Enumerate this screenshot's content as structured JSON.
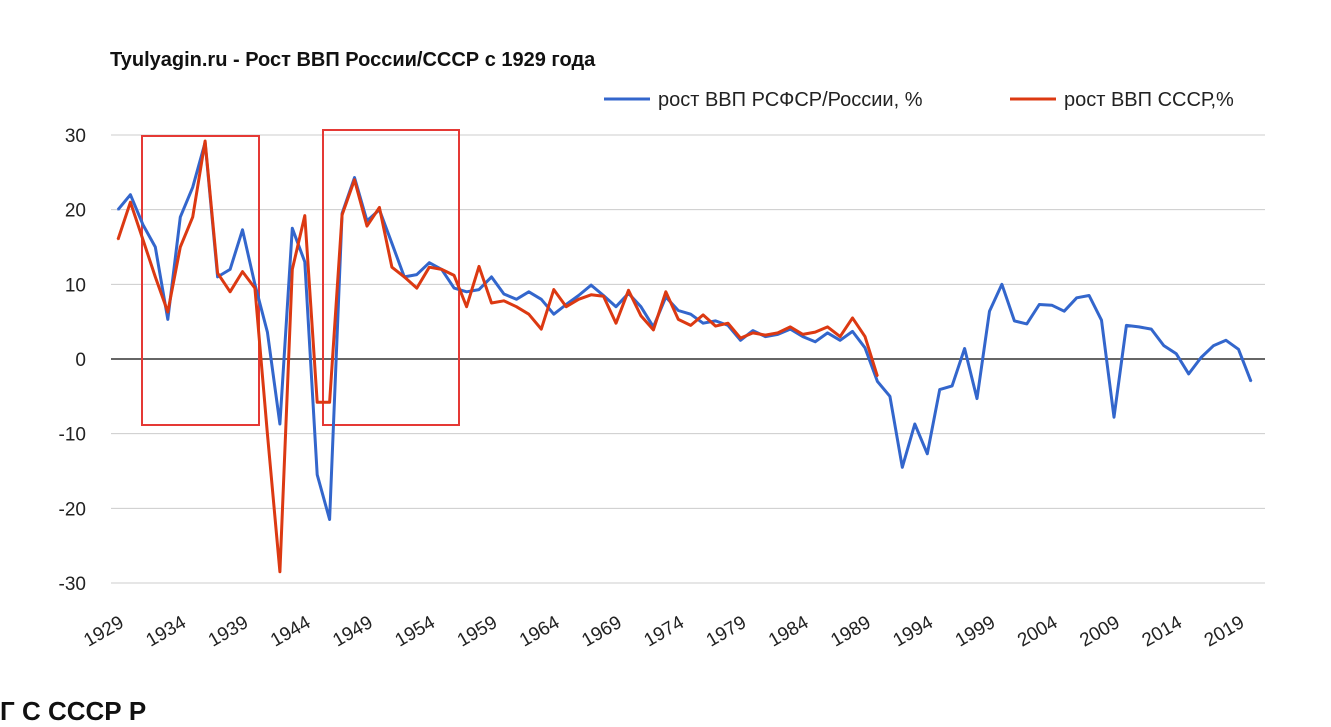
{
  "chart_data": {
    "type": "line",
    "title": "Tyulyagin.ru - Рост ВВП России/СССР с 1929 года",
    "xlabel": "",
    "ylabel": "",
    "xlim": [
      1929,
      2020
    ],
    "ylim": [
      -30,
      30
    ],
    "y_ticks": [
      "30",
      "20",
      "10",
      "0",
      "-10",
      "-20",
      "-30"
    ],
    "x_ticks": [
      "1929",
      "1934",
      "1939",
      "1944",
      "1949",
      "1954",
      "1959",
      "1964",
      "1969",
      "1974",
      "1979",
      "1984",
      "1989",
      "1994",
      "1999",
      "2004",
      "2009",
      "2014",
      "2019"
    ],
    "grid": true,
    "legend_position": "top-right",
    "series": [
      {
        "name": "рост ВВП РСФСР/России, %",
        "color": "#3366cc",
        "x": [
          1929,
          1930,
          1931,
          1932,
          1933,
          1934,
          1935,
          1936,
          1937,
          1938,
          1939,
          1940,
          1941,
          1942,
          1943,
          1944,
          1945,
          1946,
          1947,
          1948,
          1949,
          1950,
          1951,
          1952,
          1953,
          1954,
          1955,
          1956,
          1957,
          1958,
          1959,
          1960,
          1961,
          1962,
          1963,
          1964,
          1965,
          1966,
          1967,
          1968,
          1969,
          1970,
          1971,
          1972,
          1973,
          1974,
          1975,
          1976,
          1977,
          1978,
          1979,
          1980,
          1981,
          1982,
          1983,
          1984,
          1985,
          1986,
          1987,
          1988,
          1989,
          1990,
          1991,
          1992,
          1993,
          1994,
          1995,
          1996,
          1997,
          1998,
          1999,
          2000,
          2001,
          2002,
          2003,
          2004,
          2005,
          2006,
          2007,
          2008,
          2009,
          2010,
          2011,
          2012,
          2013,
          2014,
          2015,
          2016,
          2017,
          2018,
          2019,
          2020
        ],
        "values": [
          20,
          22,
          18,
          15,
          5.3,
          19,
          23,
          29,
          11,
          12,
          17.3,
          10,
          3.6,
          -8.7,
          17.5,
          13,
          -15.5,
          -21.5,
          19.5,
          24.3,
          18.5,
          20,
          15.5,
          11,
          11.3,
          12.9,
          12,
          9.5,
          9,
          9.3,
          11,
          8.7,
          8,
          9,
          8,
          6,
          7.3,
          8.5,
          9.9,
          8.5,
          7,
          8.8,
          7,
          4.3,
          8.3,
          6.5,
          6,
          4.8,
          5.1,
          4.5,
          2.5,
          3.8,
          3,
          3.3,
          4,
          3,
          2.3,
          3.5,
          2.5,
          3.7,
          1.5,
          -3,
          -5,
          -14.5,
          -8.7,
          -12.7,
          -4.1,
          -3.6,
          1.4,
          -5.3,
          6.4,
          10,
          5.1,
          4.7,
          7.3,
          7.2,
          6.4,
          8.2,
          8.5,
          5.2,
          -7.8,
          4.5,
          4.3,
          4,
          1.8,
          0.7,
          -2,
          0.2,
          1.8,
          2.5,
          1.3,
          -3
        ]
      },
      {
        "name": "рост ВВП СССР,%",
        "color": "#dc3912",
        "x": [
          1929,
          1930,
          1931,
          1932,
          1933,
          1934,
          1935,
          1936,
          1937,
          1938,
          1939,
          1940,
          1941,
          1942,
          1943,
          1944,
          1945,
          1946,
          1947,
          1948,
          1949,
          1950,
          1951,
          1952,
          1953,
          1954,
          1955,
          1956,
          1957,
          1958,
          1959,
          1960,
          1961,
          1962,
          1963,
          1964,
          1965,
          1966,
          1967,
          1968,
          1969,
          1970,
          1971,
          1972,
          1973,
          1974,
          1975,
          1976,
          1977,
          1978,
          1979,
          1980,
          1981,
          1982,
          1983,
          1984,
          1985,
          1986,
          1987,
          1988,
          1989,
          1990
        ],
        "values": [
          16,
          21,
          16,
          11,
          6.3,
          15,
          19,
          29.2,
          11.5,
          9,
          11.7,
          9.5,
          -10,
          -28.5,
          12,
          19.2,
          -5.8,
          -5.8,
          19.3,
          24,
          17.8,
          20.3,
          12.3,
          11,
          9.5,
          12.3,
          12,
          11.2,
          7,
          12.4,
          7.5,
          7.8,
          7,
          6,
          4,
          9.3,
          7,
          8,
          8.6,
          8.4,
          4.8,
          9.2,
          5.8,
          3.9,
          9,
          5.3,
          4.5,
          5.9,
          4.4,
          4.8,
          2.8,
          3.5,
          3.2,
          3.5,
          4.3,
          3.3,
          3.6,
          4.3,
          3,
          5.5,
          3,
          -2.3
        ]
      }
    ]
  },
  "below_text": "Г  С  СССР  Р"
}
